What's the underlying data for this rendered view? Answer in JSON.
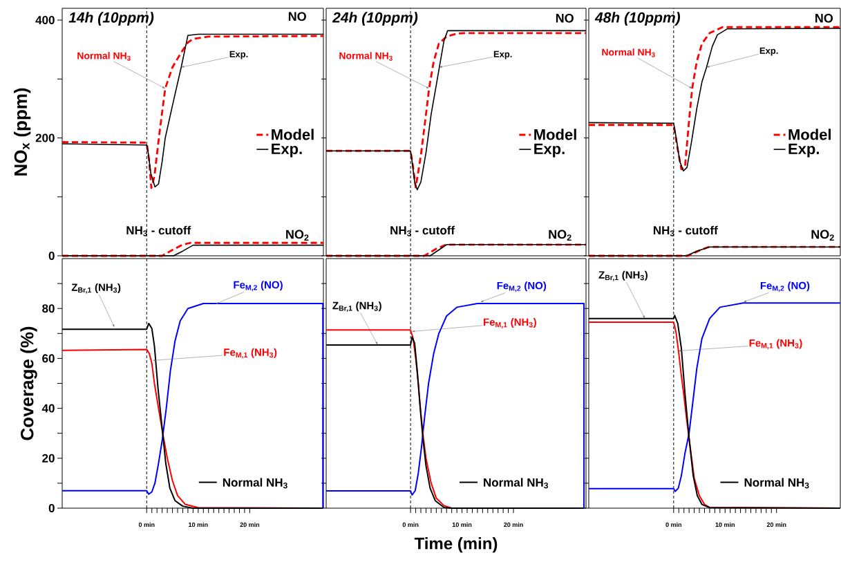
{
  "chart_data": [
    {
      "type": "line",
      "title": "14h (10ppm)",
      "ylabel": "NO$_{x}$ (ppm)",
      "xlim": [
        -16.4,
        34.3
      ],
      "ylim": [
        0,
        420
      ],
      "yticks": [
        0,
        {
          "value": 100,
          "label": null
        },
        200,
        {
          "value": 300,
          "label": null
        },
        400
      ],
      "tick_labels": "y",
      "legend": "right",
      "ref_lines": [
        {
          "axis": "x",
          "value": 0,
          "label": "NH$_{3}$ - cutoff",
          "color": "#000000",
          "line_style": "dashed"
        }
      ],
      "annotations": [
        "NO",
        "NO$_{2}$",
        {
          "text": "Normal NH$_{3}$",
          "x": 3.6,
          "y": 284
        },
        {
          "text": "Exp.",
          "x": 6.7,
          "y": 320
        }
      ],
      "series": [
        {
          "name": "Model",
          "color": "#ff0000",
          "line_style": "dashed",
          "x": [
            -16.4,
            0,
            0.5,
            0.9,
            1.5,
            2.5,
            3.6,
            5,
            6.7,
            8,
            9,
            12,
            34.3
          ],
          "values": [
            193,
            192,
            160,
            115,
            135,
            210,
            284,
            320,
            345,
            362,
            368,
            372,
            373
          ]
        },
        {
          "name": "Exp.",
          "color": "#000000",
          "line_style": "solid",
          "x": [
            -16.4,
            0,
            0.3,
            0.8,
            1.6,
            2.3,
            3,
            3.6,
            5,
            6.7,
            8,
            10,
            34.3
          ],
          "values": [
            190,
            188,
            175,
            140,
            117,
            122,
            160,
            200,
            255,
            320,
            374,
            376,
            376
          ]
        },
        {
          "color": "#ff0000",
          "line_style": "dashed",
          "x": [
            -16.4,
            3,
            5,
            7,
            8.5,
            34.3
          ],
          "values": [
            0,
            0,
            10,
            19,
            22,
            22
          ]
        },
        {
          "color": "#000000",
          "line_style": "solid",
          "x": [
            -16.4,
            5.2,
            7,
            9,
            34.3
          ],
          "values": [
            0,
            0,
            8,
            18,
            18
          ]
        }
      ]
    },
    {
      "type": "line",
      "title": "24h (10ppm)",
      "xlim": [
        -16.4,
        34.1
      ],
      "ylim": [
        0,
        420
      ],
      "yticks": [
        0,
        {
          "value": 100,
          "label": null
        },
        200,
        {
          "value": 300,
          "label": null
        },
        400
      ],
      "tick_labels": false,
      "legend": "right",
      "ref_lines": [
        {
          "axis": "x",
          "value": 0,
          "label": "NH$_{3}$ - cutoff",
          "color": "#000000",
          "line_style": "dashed"
        }
      ],
      "annotations": [
        "NO",
        "NO$_{2}$",
        {
          "text": "Normal NH$_{3}$",
          "x": 3.6,
          "y": 284
        },
        {
          "text": "Exp.",
          "x": 5.6,
          "y": 320
        }
      ],
      "series": [
        {
          "name": "Model",
          "color": "#ff0000",
          "line_style": "dashed",
          "x": [
            -16.4,
            0,
            0.5,
            1.0,
            2,
            3,
            3.6,
            4.5,
            5.5,
            7,
            9,
            11,
            34.1
          ],
          "values": [
            178,
            178,
            150,
            116,
            170,
            240,
            284,
            330,
            360,
            372,
            377,
            378,
            378
          ]
        },
        {
          "name": "Exp.",
          "color": "#000000",
          "line_style": "solid",
          "x": [
            -16.4,
            0,
            0.3,
            0.8,
            1.3,
            2,
            3,
            4,
            5,
            5.6,
            6.5,
            7.2,
            9,
            34.1
          ],
          "values": [
            178,
            178,
            160,
            125,
            112,
            125,
            175,
            240,
            290,
            320,
            365,
            382,
            382,
            382
          ]
        },
        {
          "color": "#ff0000",
          "line_style": "dashed",
          "x": [
            -16.4,
            2.7,
            5,
            6.9,
            34.1
          ],
          "values": [
            0,
            0,
            12,
            19,
            19
          ]
        },
        {
          "color": "#000000",
          "line_style": "solid",
          "x": [
            -16.4,
            3.8,
            5.5,
            7,
            34.1
          ],
          "values": [
            0,
            0,
            10,
            19,
            19
          ]
        }
      ]
    },
    {
      "type": "line",
      "title": "48h (10ppm)",
      "xlim": [
        -16.5,
        32.4
      ],
      "ylim": [
        0,
        420
      ],
      "yticks": [
        0,
        {
          "value": 100,
          "label": null
        },
        200,
        {
          "value": 300,
          "label": null
        },
        400
      ],
      "tick_labels": false,
      "legend": "right",
      "ref_lines": [
        {
          "axis": "x",
          "value": 0,
          "label": "NH$_{3}$ - cutoff",
          "color": "#000000",
          "line_style": "dashed"
        }
      ],
      "annotations": [
        "NO",
        "NO$_{2}$",
        {
          "text": "Normal NH$_{3}$",
          "x": 3.6,
          "y": 284
        },
        {
          "text": "Exp.",
          "x": 6.4,
          "y": 320
        }
      ],
      "series": [
        {
          "name": "Model",
          "color": "#ff0000",
          "line_style": "dashed",
          "x": [
            -16.5,
            0,
            0.7,
            1.5,
            2.2,
            3,
            3.6,
            4.5,
            5.5,
            7,
            9.5,
            32.4
          ],
          "values": [
            222,
            222,
            185,
            147,
            150,
            230,
            284,
            330,
            360,
            378,
            388,
            388
          ]
        },
        {
          "name": "Exp.",
          "color": "#000000",
          "line_style": "solid",
          "x": [
            -16.5,
            0,
            0.5,
            1.2,
            1.9,
            2.6,
            3.5,
            4.5,
            5.5,
            6.4,
            7.5,
            8.5,
            10.4,
            32.4
          ],
          "values": [
            226,
            225,
            200,
            160,
            144,
            150,
            195,
            250,
            295,
            320,
            355,
            375,
            385,
            386
          ]
        },
        {
          "color": "#ff0000",
          "line_style": "dashed",
          "x": [
            -16.5,
            2.8,
            5,
            6.8,
            32.4
          ],
          "values": [
            0,
            0,
            9,
            15,
            15
          ]
        },
        {
          "color": "#000000",
          "line_style": "solid",
          "x": [
            -16.5,
            2.5,
            4.5,
            7,
            32.4
          ],
          "values": [
            0,
            0,
            8,
            15,
            15
          ]
        }
      ]
    },
    {
      "type": "line",
      "ylabel": "Coverage (%)",
      "xlim": [
        -16.4,
        34.3
      ],
      "ylim": [
        0,
        100
      ],
      "yticks": [
        0,
        {
          "value": 10,
          "label": null
        },
        20,
        {
          "value": 30,
          "label": null
        },
        40,
        {
          "value": 50,
          "label": null
        },
        60,
        {
          "value": 70,
          "label": null
        },
        80,
        {
          "value": 90,
          "label": null
        }
      ],
      "xticks": [
        {
          "value": 0,
          "label": "0 min"
        },
        {
          "value": 1,
          "label": null
        },
        {
          "value": 2,
          "label": null
        },
        {
          "value": 3,
          "label": null
        },
        {
          "value": 4,
          "label": null
        },
        {
          "value": 5,
          "label": null
        },
        {
          "value": 6,
          "label": null
        },
        {
          "value": 7,
          "label": null
        },
        {
          "value": 8,
          "label": null
        },
        {
          "value": 9,
          "label": null
        },
        {
          "value": 10,
          "label": "10 min"
        },
        {
          "value": 11,
          "label": null
        },
        {
          "value": 12,
          "label": null
        },
        {
          "value": 13,
          "label": null
        },
        {
          "value": 14,
          "label": null
        },
        {
          "value": 15,
          "label": null
        },
        {
          "value": 16,
          "label": null
        },
        {
          "value": 17,
          "label": null
        },
        {
          "value": 18,
          "label": null
        },
        {
          "value": 19,
          "label": null
        },
        {
          "value": 20,
          "label": "20 min"
        }
      ],
      "ref_lines": [
        {
          "axis": "x",
          "value": 0,
          "color": "#000000",
          "line_style": "dashed"
        }
      ],
      "annotations": [
        "Normal NH$_{3}$"
      ],
      "series": [
        {
          "name": "Z$_{Br,1}$ (NH$_{3}$)",
          "color": "#000000",
          "x": [
            -16.4,
            0,
            0.4,
            1,
            1.5,
            2.2,
            3,
            3.7,
            4.5,
            5.5,
            7,
            9,
            34.2
          ],
          "values": [
            71.7,
            71.7,
            74,
            72,
            65,
            48,
            32,
            18,
            8,
            3,
            0.8,
            0,
            0
          ]
        },
        {
          "name": "Fe$_{M,1}$ (NH$_{3}$)",
          "color": "#ff0000",
          "x": [
            -16.4,
            0,
            0.5,
            1,
            1.5,
            2.3,
            3.2,
            4,
            5,
            6,
            7.5,
            10,
            34.2
          ],
          "values": [
            63.2,
            63.6,
            62,
            58,
            50,
            40,
            29,
            20,
            11,
            5,
            1.5,
            0.2,
            0
          ]
        },
        {
          "name": "Fe$_{M,2}$ (NO)",
          "color": "#0000ff",
          "x": [
            -16.4,
            0,
            0.4,
            1,
            1.6,
            2.3,
            3,
            3.8,
            4.6,
            5.5,
            6.5,
            8,
            11,
            34.2,
            34.2
          ],
          "values": [
            7,
            7,
            5.6,
            6.5,
            10,
            18,
            27,
            40,
            55,
            67,
            75,
            80,
            82,
            82,
            0
          ]
        }
      ]
    },
    {
      "type": "line",
      "xlabel": "Time (min)",
      "xlim": [
        -16.4,
        34.1
      ],
      "ylim": [
        0,
        100
      ],
      "tick_labels": "x",
      "yticks": [
        0,
        {
          "value": 10,
          "label": null
        },
        20,
        {
          "value": 30,
          "label": null
        },
        40,
        {
          "value": 50,
          "label": null
        },
        60,
        {
          "value": 70,
          "label": null
        },
        80,
        {
          "value": 90,
          "label": null
        }
      ],
      "xticks": [
        {
          "value": 0,
          "label": "0 min"
        },
        {
          "value": 1,
          "label": null
        },
        {
          "value": 2,
          "label": null
        },
        {
          "value": 3,
          "label": null
        },
        {
          "value": 4,
          "label": null
        },
        {
          "value": 5,
          "label": null
        },
        {
          "value": 6,
          "label": null
        },
        {
          "value": 7,
          "label": null
        },
        {
          "value": 8,
          "label": null
        },
        {
          "value": 9,
          "label": null
        },
        {
          "value": 10,
          "label": "10 min"
        },
        {
          "value": 11,
          "label": null
        },
        {
          "value": 12,
          "label": null
        },
        {
          "value": 13,
          "label": null
        },
        {
          "value": 14,
          "label": null
        },
        {
          "value": 15,
          "label": null
        },
        {
          "value": 16,
          "label": null
        },
        {
          "value": 17,
          "label": null
        },
        {
          "value": 18,
          "label": null
        },
        {
          "value": 19,
          "label": null
        },
        {
          "value": 20,
          "label": "20 min"
        }
      ],
      "ref_lines": [
        {
          "axis": "x",
          "value": 0,
          "color": "#000000",
          "line_style": "dashed"
        }
      ],
      "annotations": [
        "Normal NH$_{3}$"
      ],
      "series": [
        {
          "name": "Z$_{Br,1}$ (NH$_{3}$)",
          "color": "#000000",
          "x": [
            -16.4,
            0,
            0.3,
            0.8,
            1.3,
            1.8,
            2.4,
            3,
            3.8,
            4.8,
            6.5,
            8,
            33.7
          ],
          "values": [
            65.4,
            65.4,
            68.6,
            66,
            55,
            42,
            28,
            17,
            8,
            3,
            0.3,
            0,
            0
          ]
        },
        {
          "name": "Fe$_{M,1}$ (NH$_{3}$)",
          "color": "#ff0000",
          "x": [
            -16.4,
            0,
            0.5,
            1,
            1.5,
            2,
            2.5,
            3,
            4,
            5,
            6.5,
            8,
            33.7
          ],
          "values": [
            71.4,
            71.4,
            68,
            60,
            50,
            38,
            28,
            20,
            10,
            4,
            1,
            0,
            0
          ]
        },
        {
          "name": "Fe$_{M,2}$ (NO)",
          "color": "#0000ff",
          "x": [
            -16.4,
            0,
            0.3,
            0.9,
            1.5,
            2.1,
            2.7,
            3.5,
            4.5,
            5.5,
            7,
            9,
            13,
            33.7,
            33.7
          ],
          "values": [
            6.9,
            6.9,
            5.3,
            7,
            14,
            24,
            36,
            50,
            62,
            70,
            77,
            80.5,
            82,
            82,
            0
          ]
        }
      ]
    },
    {
      "type": "line",
      "xlim": [
        -16.5,
        32.4
      ],
      "ylim": [
        0,
        100
      ],
      "tick_labels": "x",
      "yticks": [
        0,
        {
          "value": 10,
          "label": null
        },
        20,
        {
          "value": 30,
          "label": null
        },
        40,
        {
          "value": 50,
          "label": null
        },
        60,
        {
          "value": 70,
          "label": null
        },
        80,
        {
          "value": 90,
          "label": null
        }
      ],
      "xticks": [
        {
          "value": 0,
          "label": "0 min"
        },
        {
          "value": 1,
          "label": null
        },
        {
          "value": 2,
          "label": null
        },
        {
          "value": 3,
          "label": null
        },
        {
          "value": 4,
          "label": null
        },
        {
          "value": 5,
          "label": null
        },
        {
          "value": 6,
          "label": null
        },
        {
          "value": 7,
          "label": null
        },
        {
          "value": 8,
          "label": null
        },
        {
          "value": 9,
          "label": null
        },
        {
          "value": 10,
          "label": "10 min"
        },
        {
          "value": 11,
          "label": null
        },
        {
          "value": 12,
          "label": null
        },
        {
          "value": 13,
          "label": null
        },
        {
          "value": 14,
          "label": null
        },
        {
          "value": 15,
          "label": null
        },
        {
          "value": 16,
          "label": null
        },
        {
          "value": 17,
          "label": null
        },
        {
          "value": 18,
          "label": null
        },
        {
          "value": 19,
          "label": null
        },
        {
          "value": 20,
          "label": "20 min"
        }
      ],
      "ref_lines": [
        {
          "axis": "x",
          "value": 0,
          "color": "#000000",
          "line_style": "dashed"
        }
      ],
      "annotations": [
        "Normal NH$_{3}$"
      ],
      "series": [
        {
          "name": "Z$_{Br,1}$ (NH$_{3}$)",
          "color": "#000000",
          "x": [
            -16.5,
            0,
            0.2,
            0.8,
            1.5,
            2.2,
            3,
            3.8,
            4.6,
            5.5,
            7,
            32.4
          ],
          "values": [
            76,
            76,
            77.2,
            74,
            64,
            46,
            28,
            13,
            5,
            1.5,
            0.2,
            0
          ]
        },
        {
          "name": "Fe$_{M,1}$ (NH$_{3}$)",
          "color": "#ff0000",
          "x": [
            -16.5,
            0,
            0.5,
            1,
            1.5,
            2,
            2.5,
            3,
            3.5,
            4,
            5,
            6,
            7,
            32.4
          ],
          "values": [
            74.5,
            74.5,
            70,
            62,
            53,
            45,
            36,
            28,
            20,
            12,
            5,
            1.5,
            0.3,
            0
          ]
        },
        {
          "name": "Fe$_{M,2}$ (NO)",
          "color": "#0000ff",
          "x": [
            -16.5,
            0,
            0.3,
            0.9,
            1.5,
            2.2,
            3,
            3.7,
            4.5,
            5.5,
            7,
            9,
            13.5,
            32.4
          ],
          "values": [
            7.8,
            7.8,
            6.7,
            8,
            13,
            22,
            30,
            42,
            56,
            68,
            76,
            80.5,
            82.2,
            82.2
          ]
        }
      ]
    }
  ]
}
